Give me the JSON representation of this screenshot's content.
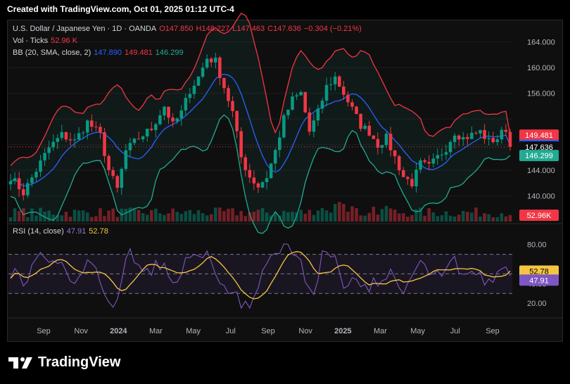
{
  "banner": "Created with TradingView.com, Oct 01, 2025 01:12 UTC-4",
  "legend": {
    "symbol": "U.S. Dollar / Japanese Yen · 1D · OANDA",
    "o": "O147.850",
    "h": "H148.227",
    "l": "L147.463",
    "c": "C147.636",
    "chg": "−0.304 (−0.21%)",
    "vol_label": "Vol · Ticks",
    "vol_value": "52.96 K",
    "bb_label": "BB (20, SMA, close, 2)",
    "bb_basis": "147.890",
    "bb_upper": "149.481",
    "bb_lower": "146.299",
    "rsi_label": "RSI (14, close)",
    "rsi_value": "47.91",
    "rsi_ma": "52.78"
  },
  "footer": {
    "brand": "TradingView"
  },
  "colors": {
    "up": "#089981",
    "down": "#f23645",
    "basis": "#2962ff",
    "upper": "#f23645",
    "lower": "#22ab94",
    "rsi": "#7e57c2",
    "rsi_ma": "#f5c542"
  },
  "chart_data": {
    "type": "candlestick",
    "price_axis": {
      "ticks": [
        140.0,
        144.0,
        148.0,
        152.0,
        156.0,
        160.0,
        164.0
      ],
      "tick_labels": [
        "140.000",
        "144.000",
        "",
        "",
        "156.000",
        "160.000",
        "164.000"
      ],
      "range": [
        136.0,
        165.5
      ]
    },
    "time_axis": {
      "labels": [
        "Sep",
        "Nov",
        "2024",
        "Mar",
        "May",
        "Jul",
        "Sep",
        "Nov",
        "2025",
        "Mar",
        "May",
        "Jul",
        "Sep"
      ]
    },
    "price_path": [
      [
        0,
        143
      ],
      [
        3,
        140.5
      ],
      [
        6,
        144
      ],
      [
        9,
        147.5
      ],
      [
        12,
        149.5
      ],
      [
        15,
        148.5
      ],
      [
        18,
        151.5
      ],
      [
        21,
        149.5
      ],
      [
        23,
        144
      ],
      [
        25,
        141
      ],
      [
        27,
        147
      ],
      [
        30,
        149
      ],
      [
        33,
        150.5
      ],
      [
        36,
        154
      ],
      [
        38,
        151
      ],
      [
        40,
        153
      ],
      [
        42,
        156.5
      ],
      [
        44,
        158.5
      ],
      [
        46,
        161.5
      ],
      [
        48,
        161
      ],
      [
        50,
        157
      ],
      [
        52,
        153
      ],
      [
        54,
        146
      ],
      [
        56,
        143
      ],
      [
        58,
        141.5
      ],
      [
        60,
        143
      ],
      [
        62,
        147
      ],
      [
        64,
        152
      ],
      [
        66,
        155
      ],
      [
        68,
        156
      ],
      [
        70,
        150
      ],
      [
        72,
        153
      ],
      [
        74,
        157
      ],
      [
        76,
        158.5
      ],
      [
        78,
        156
      ],
      [
        80,
        153.5
      ],
      [
        82,
        151
      ],
      [
        84,
        150
      ],
      [
        86,
        148
      ],
      [
        88,
        149
      ],
      [
        90,
        146
      ],
      [
        92,
        143
      ],
      [
        94,
        142
      ],
      [
        96,
        145
      ],
      [
        98,
        144.5
      ],
      [
        100,
        146
      ],
      [
        102,
        147.5
      ],
      [
        104,
        150
      ],
      [
        106,
        149
      ],
      [
        108,
        149.5
      ],
      [
        110,
        150
      ],
      [
        112,
        148.5
      ],
      [
        114,
        149
      ],
      [
        116,
        150.5
      ],
      [
        117,
        147.6
      ]
    ],
    "bb_last": {
      "upper": 149.481,
      "basis": 147.89,
      "lower": 146.299
    },
    "last_close": 147.636,
    "volume_last": "52.96K",
    "rsi": {
      "range": [
        10,
        92
      ],
      "ticks": [
        20.0,
        40.0,
        60.0,
        80.0
      ],
      "tick_labels": [
        "20.00",
        "40.00",
        "",
        "80.00"
      ],
      "bands": [
        30,
        70
      ],
      "last": 47.91,
      "ma_last": 52.78
    }
  }
}
